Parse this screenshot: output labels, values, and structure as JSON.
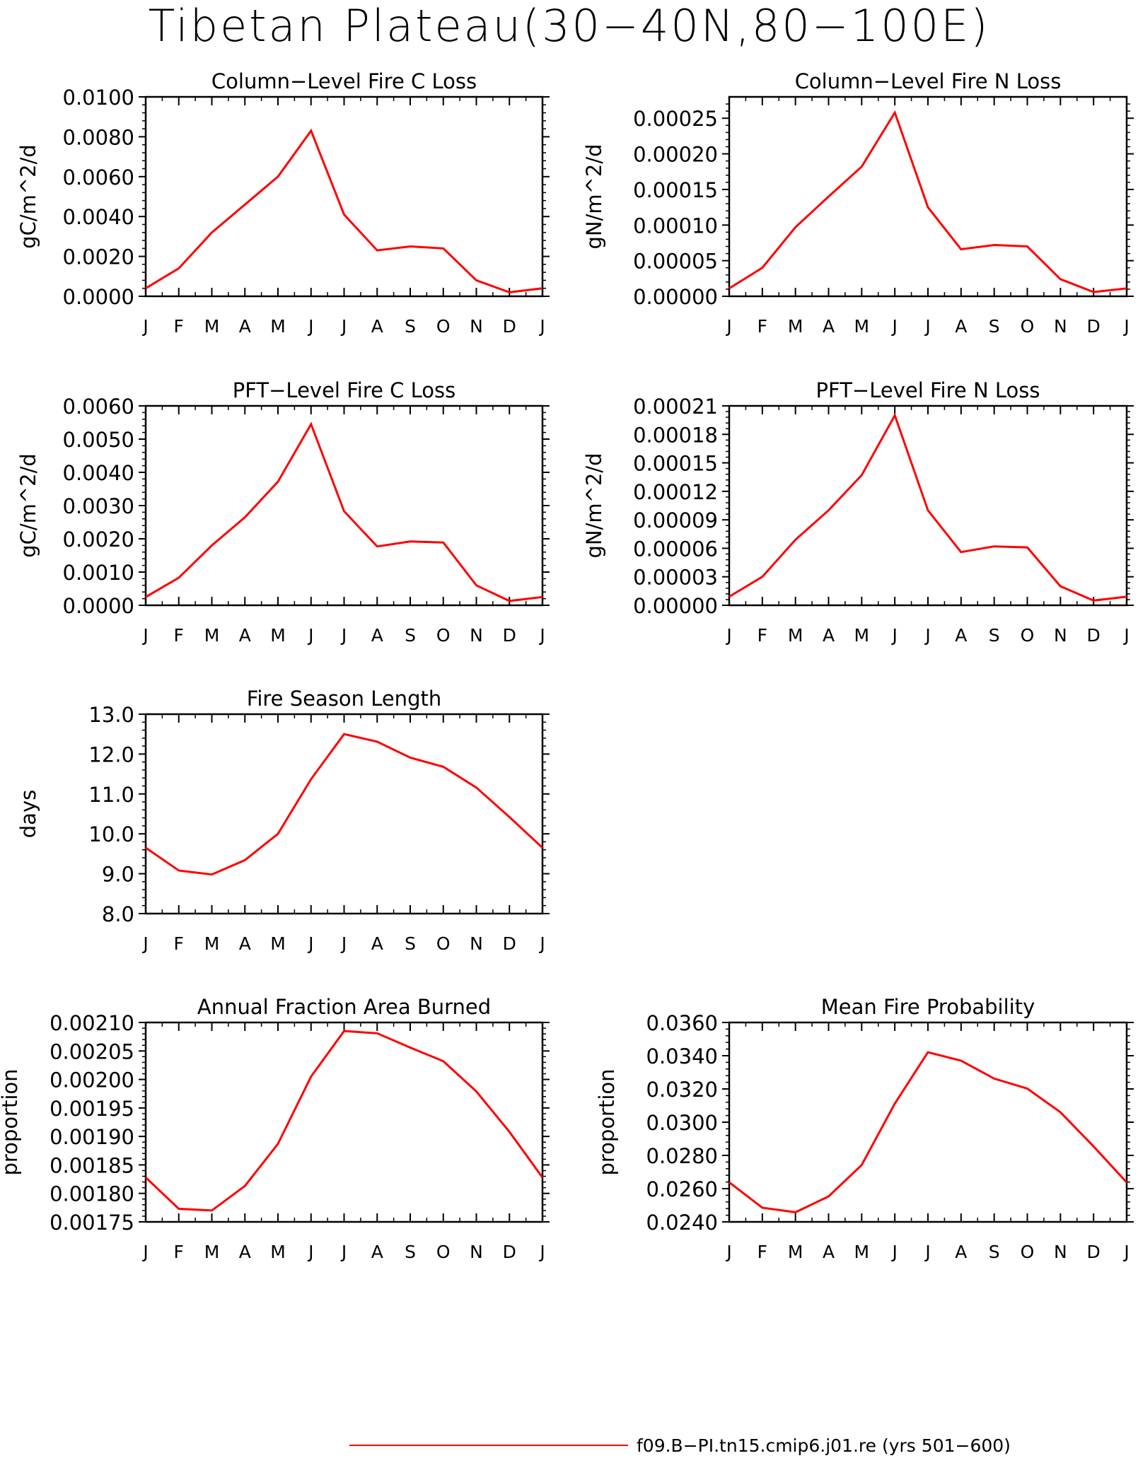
{
  "figure": {
    "title": "Tibetan Plateau(30−40N,80−100E)",
    "legend": {
      "label": "f09.B−PI.tn15.cmip6.j01.re (yrs 501−600)",
      "color": "#ff0000"
    }
  },
  "line_color": "#ff0000",
  "chart_data": [
    {
      "id": "col-c",
      "type": "line",
      "title": "Column−Level Fire C Loss",
      "ylabel": "gC/m^2/d",
      "categories": [
        "J",
        "F",
        "M",
        "A",
        "M",
        "J",
        "J",
        "A",
        "S",
        "O",
        "N",
        "D",
        "J"
      ],
      "ylim": [
        0,
        0.01
      ],
      "yticks": [
        0,
        0.002,
        0.004,
        0.006,
        0.008,
        0.01
      ],
      "ytick_labels": [
        "0.0000",
        "0.0020",
        "0.0040",
        "0.0060",
        "0.0080",
        "0.0100"
      ],
      "values": [
        0.0004,
        0.0014,
        0.0032,
        0.0046,
        0.006,
        0.0083,
        0.0041,
        0.0023,
        0.0025,
        0.0024,
        0.0008,
        0.0002,
        0.0004
      ]
    },
    {
      "id": "col-n",
      "type": "line",
      "title": "Column−Level Fire N Loss",
      "ylabel": "gN/m^2/d",
      "categories": [
        "J",
        "F",
        "M",
        "A",
        "M",
        "J",
        "J",
        "A",
        "S",
        "O",
        "N",
        "D",
        "J"
      ],
      "ylim": [
        0,
        0.00028
      ],
      "yticks": [
        0,
        5e-05,
        0.0001,
        0.00015,
        0.0002,
        0.00025
      ],
      "ytick_labels": [
        "0.00000",
        "0.00005",
        "0.00010",
        "0.00015",
        "0.00020",
        "0.00025"
      ],
      "values": [
        1.1e-05,
        4e-05,
        9.7e-05,
        0.00014,
        0.000182,
        0.000258,
        0.000125,
        6.6e-05,
        7.2e-05,
        7e-05,
        2.4e-05,
        6e-06,
        1.1e-05
      ]
    },
    {
      "id": "pft-c",
      "type": "line",
      "title": "PFT−Level Fire C Loss",
      "ylabel": "gC/m^2/d",
      "categories": [
        "J",
        "F",
        "M",
        "A",
        "M",
        "J",
        "J",
        "A",
        "S",
        "O",
        "N",
        "D",
        "J"
      ],
      "ylim": [
        0,
        0.006
      ],
      "yticks": [
        0,
        0.001,
        0.002,
        0.003,
        0.004,
        0.005,
        0.006
      ],
      "ytick_labels": [
        "0.0000",
        "0.0010",
        "0.0020",
        "0.0030",
        "0.0040",
        "0.0050",
        "0.0060"
      ],
      "values": [
        0.00025,
        0.00083,
        0.0018,
        0.00265,
        0.00372,
        0.00545,
        0.00283,
        0.00177,
        0.00192,
        0.00189,
        0.0006,
        0.00013,
        0.00025
      ]
    },
    {
      "id": "pft-n",
      "type": "line",
      "title": "PFT−Level Fire N Loss",
      "ylabel": "gN/m^2/d",
      "categories": [
        "J",
        "F",
        "M",
        "A",
        "M",
        "J",
        "J",
        "A",
        "S",
        "O",
        "N",
        "D",
        "J"
      ],
      "ylim": [
        0,
        0.00021
      ],
      "yticks": [
        0,
        3e-05,
        6e-05,
        9e-05,
        0.00012,
        0.00015,
        0.00018,
        0.00021
      ],
      "ytick_labels": [
        "0.00000",
        "0.00003",
        "0.00006",
        "0.00009",
        "0.00012",
        "0.00015",
        "0.00018",
        "0.00021"
      ],
      "values": [
        9e-06,
        3e-05,
        6.9e-05,
        0.0001,
        0.000137,
        0.0002,
        0.0001,
        5.6e-05,
        6.2e-05,
        6.1e-05,
        2e-05,
        5e-06,
        9e-06
      ]
    },
    {
      "id": "season",
      "type": "line",
      "title": "Fire Season Length",
      "ylabel": "days",
      "categories": [
        "J",
        "F",
        "M",
        "A",
        "M",
        "J",
        "J",
        "A",
        "S",
        "O",
        "N",
        "D",
        "J"
      ],
      "ylim": [
        8,
        13
      ],
      "yticks": [
        8,
        9,
        10,
        11,
        12,
        13
      ],
      "ytick_labels": [
        "8.0",
        "9.0",
        "10.0",
        "11.0",
        "12.0",
        "13.0"
      ],
      "values": [
        9.65,
        9.08,
        8.98,
        9.34,
        10.0,
        11.37,
        12.5,
        12.31,
        11.91,
        11.68,
        11.16,
        10.42,
        9.65
      ]
    },
    {
      "id": "area",
      "type": "line",
      "title": "Annual Fraction Area Burned",
      "ylabel": "proportion",
      "categories": [
        "J",
        "F",
        "M",
        "A",
        "M",
        "J",
        "J",
        "A",
        "S",
        "O",
        "N",
        "D",
        "J"
      ],
      "ylim": [
        0.00175,
        0.0021
      ],
      "yticks": [
        0.00175,
        0.0018,
        0.00185,
        0.0019,
        0.00195,
        0.002,
        0.00205,
        0.0021
      ],
      "ytick_labels": [
        "0.00175",
        "0.00180",
        "0.00185",
        "0.00190",
        "0.00195",
        "0.00200",
        "0.00205",
        "0.00210"
      ],
      "values": [
        0.001828,
        0.001773,
        0.00177,
        0.001813,
        0.001887,
        0.002005,
        0.002085,
        0.002081,
        0.002056,
        0.002032,
        0.001979,
        0.001908,
        0.001828
      ]
    },
    {
      "id": "prob",
      "type": "line",
      "title": "Mean Fire Probability",
      "ylabel": "proportion",
      "categories": [
        "J",
        "F",
        "M",
        "A",
        "M",
        "J",
        "J",
        "A",
        "S",
        "O",
        "N",
        "D",
        "J"
      ],
      "ylim": [
        0.024,
        0.036
      ],
      "yticks": [
        0.024,
        0.026,
        0.028,
        0.03,
        0.032,
        0.034,
        0.036
      ],
      "ytick_labels": [
        "0.0240",
        "0.0260",
        "0.0280",
        "0.0300",
        "0.0320",
        "0.0340",
        "0.0360"
      ],
      "values": [
        0.02638,
        0.02485,
        0.02458,
        0.02553,
        0.02742,
        0.03112,
        0.03421,
        0.0337,
        0.03262,
        0.03202,
        0.0306,
        0.02854,
        0.02638
      ]
    }
  ]
}
